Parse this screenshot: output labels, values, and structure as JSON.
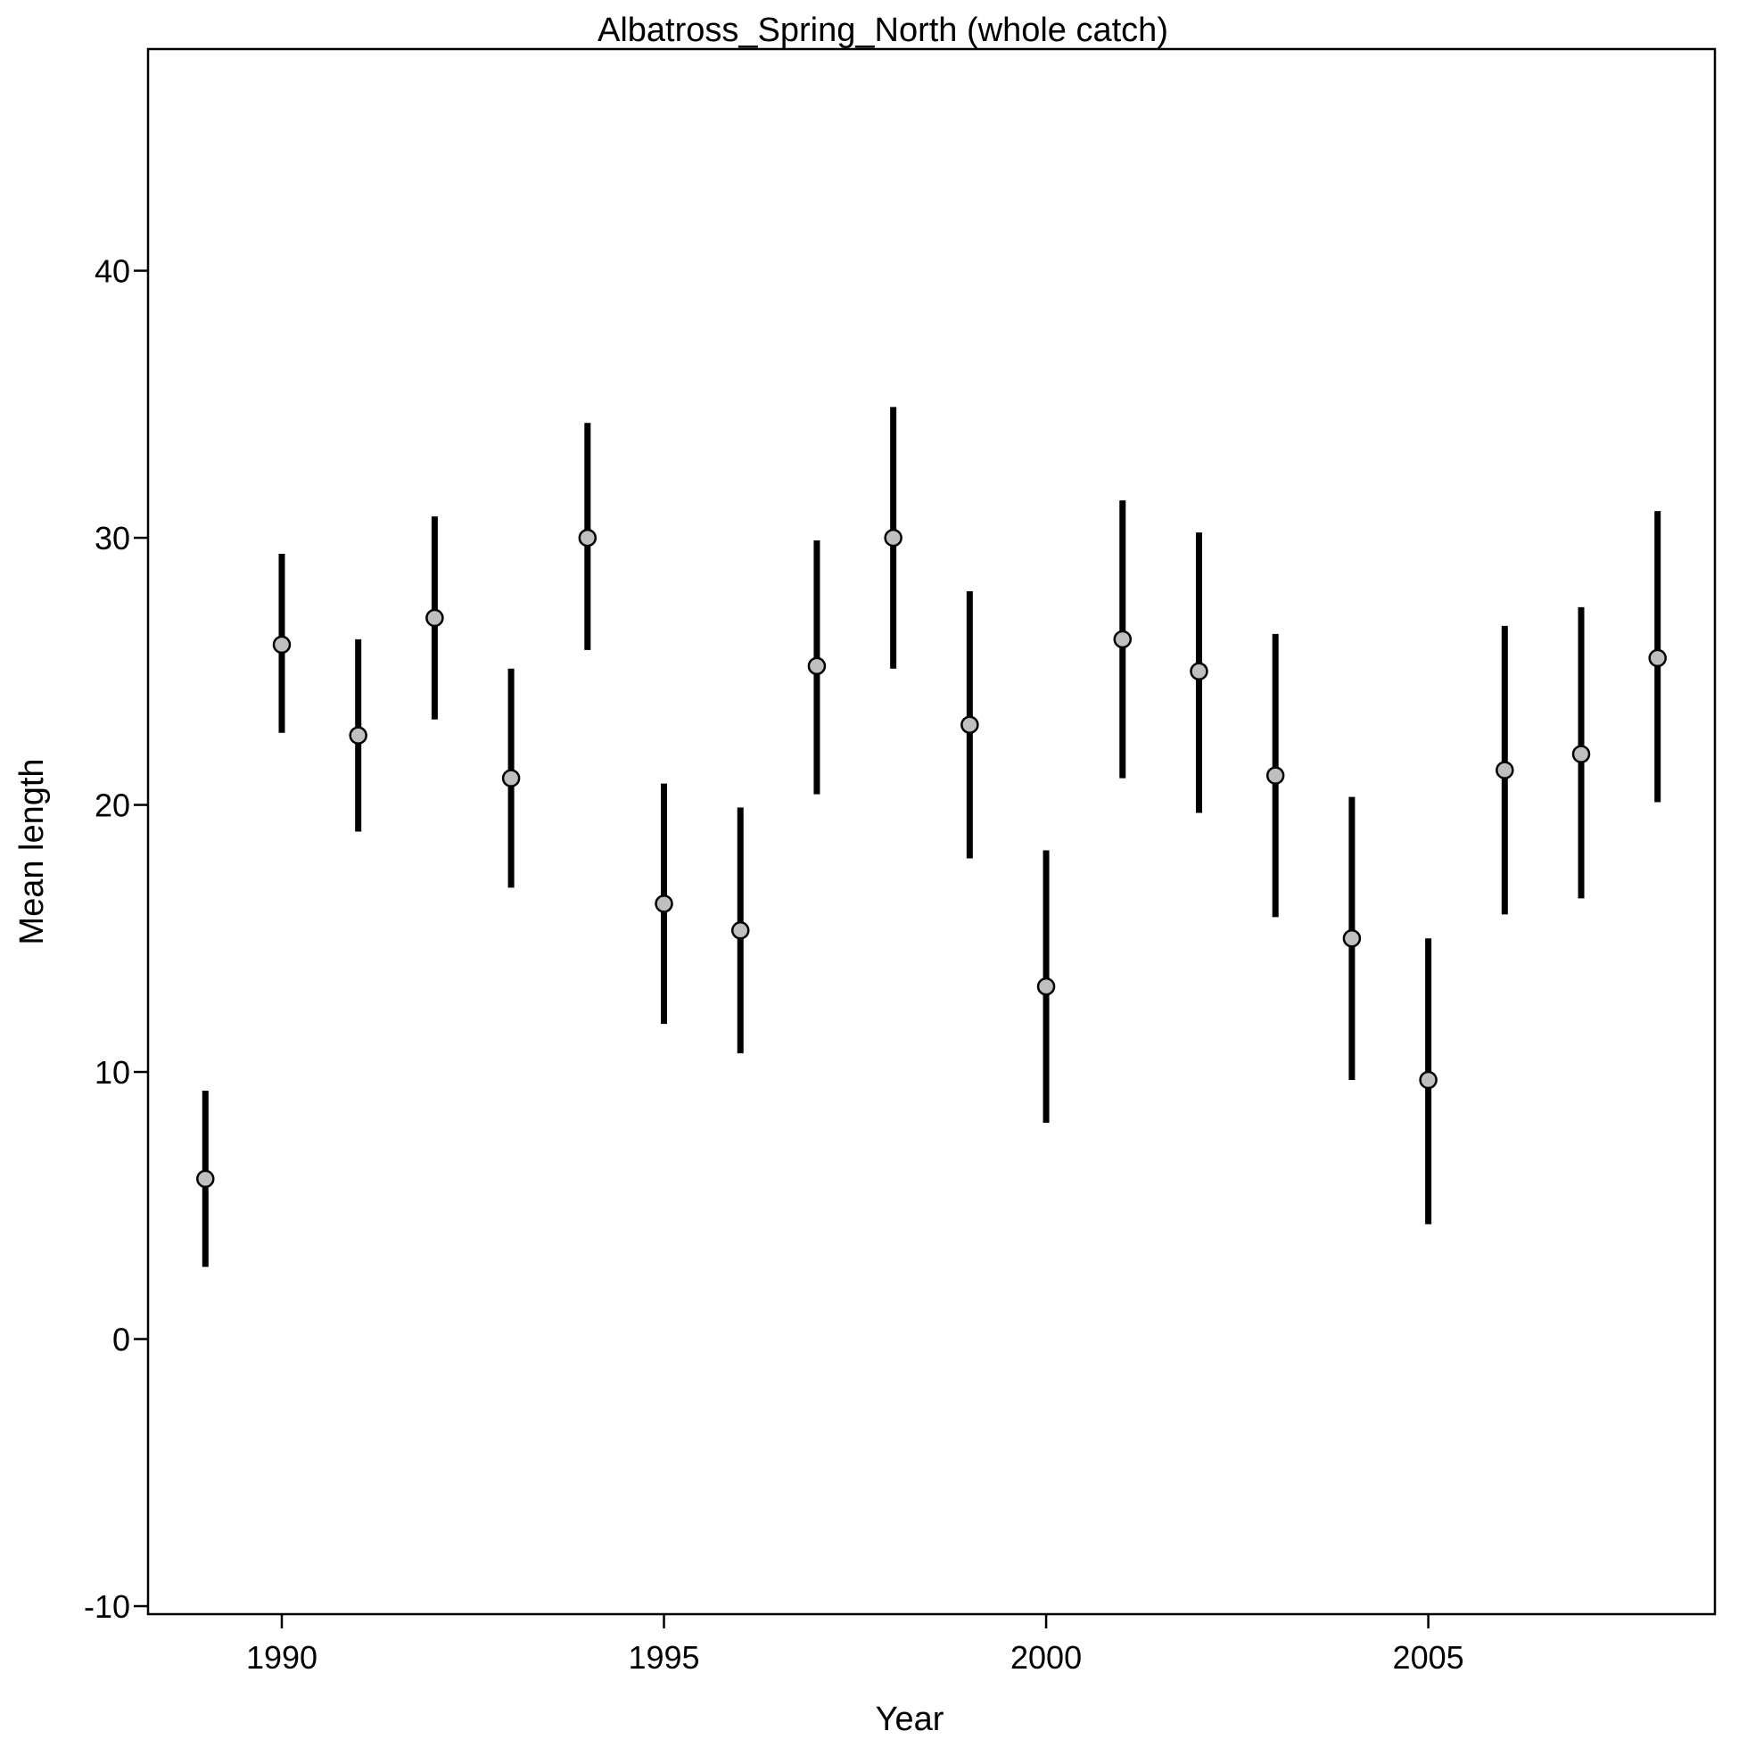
{
  "chart_data": {
    "type": "scatter",
    "title": "Albatross_Spring_North (whole catch)",
    "xlabel": "Year",
    "ylabel": "Mean length",
    "xlim": [
      1988.25,
      2008.75
    ],
    "ylim": [
      -10.3,
      48.3
    ],
    "xticks": [
      1990,
      1995,
      2000,
      2005
    ],
    "yticks": [
      -10,
      0,
      10,
      20,
      30,
      40
    ],
    "grid": false,
    "series": [
      {
        "x": [
          1989,
          1990,
          1991,
          1992,
          1993,
          1994,
          1995,
          1996,
          1997,
          1998,
          1999,
          2000,
          2001,
          2002,
          2003,
          2004,
          2005,
          2006,
          2007,
          2008
        ],
        "y": [
          6.0,
          26.0,
          22.6,
          27.0,
          21.0,
          30.0,
          16.3,
          15.3,
          25.2,
          30.0,
          23.0,
          13.2,
          26.2,
          25.0,
          21.1,
          15.0,
          9.7,
          21.3,
          21.9,
          25.5
        ],
        "lower": [
          2.7,
          22.7,
          19.0,
          23.2,
          16.9,
          25.8,
          11.8,
          10.7,
          20.4,
          25.1,
          18.0,
          8.1,
          21.0,
          19.7,
          15.8,
          9.7,
          4.3,
          15.9,
          16.5,
          20.1
        ],
        "upper": [
          9.3,
          29.4,
          26.2,
          30.8,
          25.1,
          34.3,
          20.8,
          19.9,
          29.9,
          34.9,
          28.0,
          18.3,
          31.4,
          30.2,
          26.4,
          20.3,
          15.0,
          26.7,
          27.4,
          31.0
        ]
      }
    ],
    "colors": {
      "error_bar": "#000000",
      "marker_fill": "#bfbfbf",
      "marker_stroke": "#000000"
    }
  }
}
